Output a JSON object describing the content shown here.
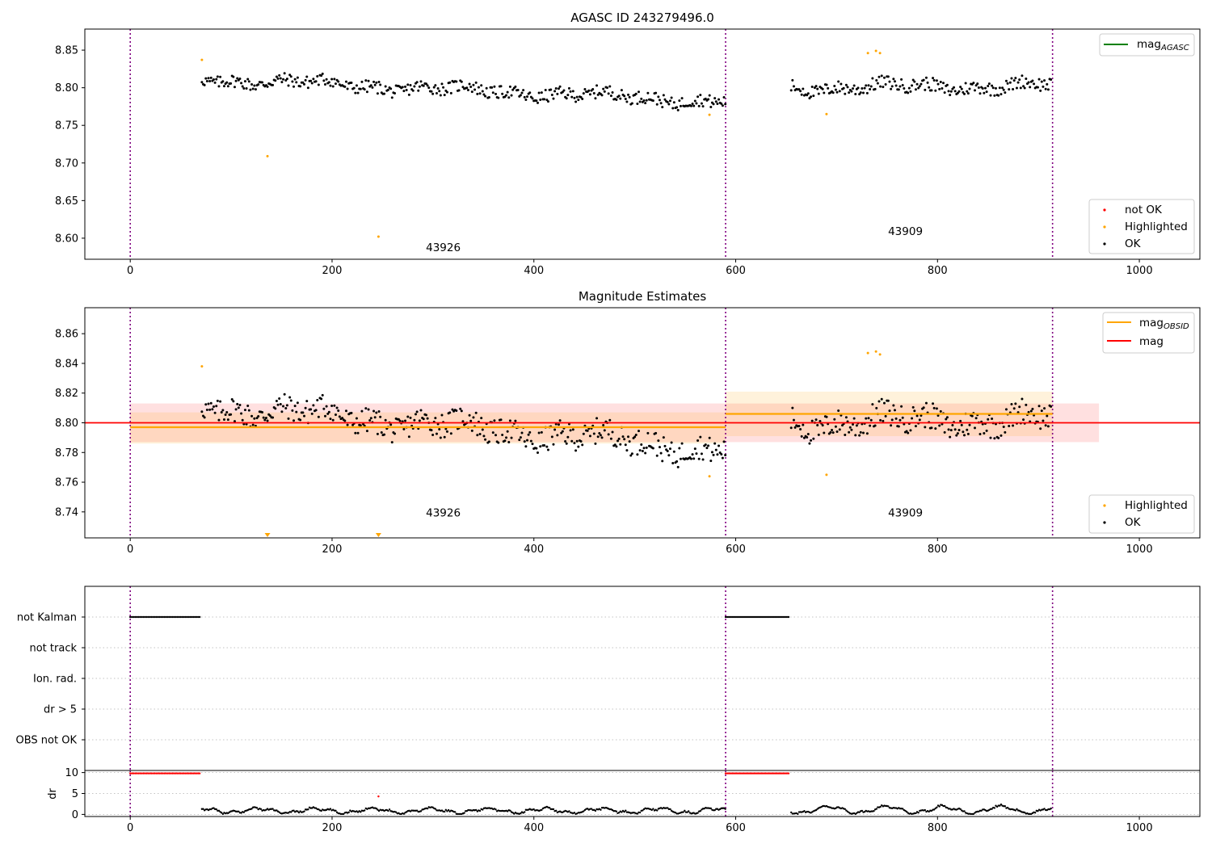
{
  "chart_data": [
    {
      "type": "scatter",
      "title": "AGASC ID 243279496.0",
      "xlim": [
        -45,
        1060
      ],
      "ylim": [
        8.572,
        8.878
      ],
      "xticks": [
        0,
        200,
        400,
        600,
        800,
        1000
      ],
      "yticks": [
        8.6,
        8.65,
        8.7,
        8.75,
        8.8,
        8.85
      ],
      "ytick_labels": [
        "8.60",
        "8.65",
        "8.70",
        "8.75",
        "8.80",
        "8.85"
      ],
      "obsid_boundaries": [
        0,
        590,
        914
      ],
      "obsid_labels": [
        {
          "text": "43926",
          "x": 293,
          "y": 8.583
        },
        {
          "text": "43909",
          "x": 751,
          "y": 8.604
        }
      ],
      "series": [
        {
          "name": "OK",
          "color": "#000000",
          "segments": [
            {
              "x0": 71,
              "x1": 590,
              "base0": 8.812,
              "base1": 8.782,
              "amp": 0.0085
            },
            {
              "x0": 655,
              "x1": 913,
              "base0": 8.8,
              "base1": 8.803,
              "amp": 0.009
            }
          ]
        },
        {
          "name": "Highlighted",
          "color": "#ffa500",
          "points": [
            [
              71,
              8.837
            ],
            [
              136,
              8.709
            ],
            [
              246,
              8.602
            ],
            [
              574,
              8.764
            ],
            [
              690,
              8.765
            ],
            [
              731,
              8.846
            ],
            [
              739,
              8.849
            ],
            [
              743,
              8.846
            ]
          ]
        },
        {
          "name": "not OK",
          "color": "#ff0000",
          "points": []
        }
      ],
      "legend_top": [
        {
          "name": "mag_AGASC",
          "label": "mag",
          "sub": "AGASC",
          "color": "#008000"
        }
      ],
      "legend_bottom": [
        {
          "label": "not OK",
          "color": "#ff0000"
        },
        {
          "label": "Highlighted",
          "color": "#ffa500"
        },
        {
          "label": "OK",
          "color": "#000000"
        }
      ]
    },
    {
      "type": "scatter",
      "title": "Magnitude Estimates",
      "xlim": [
        -45,
        1060
      ],
      "ylim": [
        8.7225,
        8.8775
      ],
      "xticks": [
        0,
        200,
        400,
        600,
        800,
        1000
      ],
      "yticks": [
        8.74,
        8.76,
        8.78,
        8.8,
        8.82,
        8.84,
        8.86
      ],
      "ytick_labels": [
        "8.74",
        "8.76",
        "8.78",
        "8.80",
        "8.82",
        "8.84",
        "8.86"
      ],
      "obsid_boundaries": [
        0,
        590,
        914
      ],
      "obsid_labels": [
        {
          "text": "43926",
          "x": 293,
          "y": 8.737
        },
        {
          "text": "43909",
          "x": 751,
          "y": 8.737
        }
      ],
      "mag": {
        "value": 8.8,
        "band": [
          8.787,
          8.813
        ],
        "x0": 0,
        "x1": 960
      },
      "mag_obsid": [
        {
          "x0": 0,
          "x1": 590,
          "value": 8.797,
          "band": [
            8.786,
            8.807
          ]
        },
        {
          "x0": 590,
          "x1": 914,
          "value": 8.806,
          "band": [
            8.791,
            8.821
          ]
        }
      ],
      "series": [
        {
          "name": "OK",
          "color": "#000000",
          "segments": [
            {
              "x0": 71,
              "x1": 590,
              "base0": 8.812,
              "base1": 8.782,
              "amp": 0.0085
            },
            {
              "x0": 655,
              "x1": 913,
              "base0": 8.8,
              "base1": 8.803,
              "amp": 0.009
            }
          ]
        },
        {
          "name": "Highlighted",
          "color": "#ffa500",
          "points": [
            [
              71,
              8.838
            ],
            [
              574,
              8.764
            ],
            [
              690,
              8.765
            ],
            [
              731,
              8.847
            ],
            [
              739,
              8.848
            ],
            [
              743,
              8.846
            ]
          ]
        },
        {
          "name": "Highlighted (off-scale)",
          "color": "#ffa500",
          "points": [
            [
              136,
              8.7225
            ],
            [
              246,
              8.7225
            ]
          ]
        }
      ],
      "legend_top": [
        {
          "label": "mag",
          "sub": "OBSID",
          "color": "#ffa500"
        },
        {
          "label": "mag",
          "sub": "",
          "color": "#ff0000"
        }
      ],
      "legend_bottom": [
        {
          "label": "Highlighted",
          "color": "#ffa500"
        },
        {
          "label": "OK",
          "color": "#000000"
        }
      ]
    },
    {
      "type": "scatter",
      "title": "",
      "xlim": [
        -45,
        1060
      ],
      "flag_rows": [
        "not Kalman",
        "not track",
        "Ion. rad.",
        "dr > 5",
        "OBS not OK"
      ],
      "flag_segments": [
        {
          "row": "not Kalman",
          "x0": 0,
          "x1": 69,
          "color": "#000000"
        },
        {
          "row": "not Kalman",
          "x0": 590,
          "x1": 654,
          "color": "#000000"
        }
      ],
      "obsid_boundaries": [
        0,
        590,
        914
      ]
    },
    {
      "type": "scatter",
      "title": "",
      "xlim": [
        -45,
        1060
      ],
      "ylim": [
        -0.5,
        10.5
      ],
      "xticks": [
        0,
        200,
        400,
        600,
        800,
        1000
      ],
      "yticks": [
        0,
        5,
        10
      ],
      "ytick_labels": [
        "0",
        "5",
        "10"
      ],
      "ylabel": "dr",
      "obsid_boundaries": [
        0,
        590,
        914
      ],
      "series": [
        {
          "name": "dr capped",
          "color": "#ff0000",
          "segments": [
            {
              "x0": 0,
              "x1": 69,
              "value": 9.8
            },
            {
              "x0": 590,
              "x1": 654,
              "value": 9.8
            }
          ]
        },
        {
          "name": "dr outlier",
          "color": "#ff0000",
          "points": [
            [
              246,
              4.3
            ]
          ]
        },
        {
          "name": "dr",
          "color": "#000000",
          "segments": [
            {
              "x0": 71,
              "x1": 590,
              "base": 0.9,
              "amp": 0.5
            },
            {
              "x0": 655,
              "x1": 913,
              "base": 1.1,
              "amp": 0.8
            }
          ]
        }
      ]
    }
  ]
}
